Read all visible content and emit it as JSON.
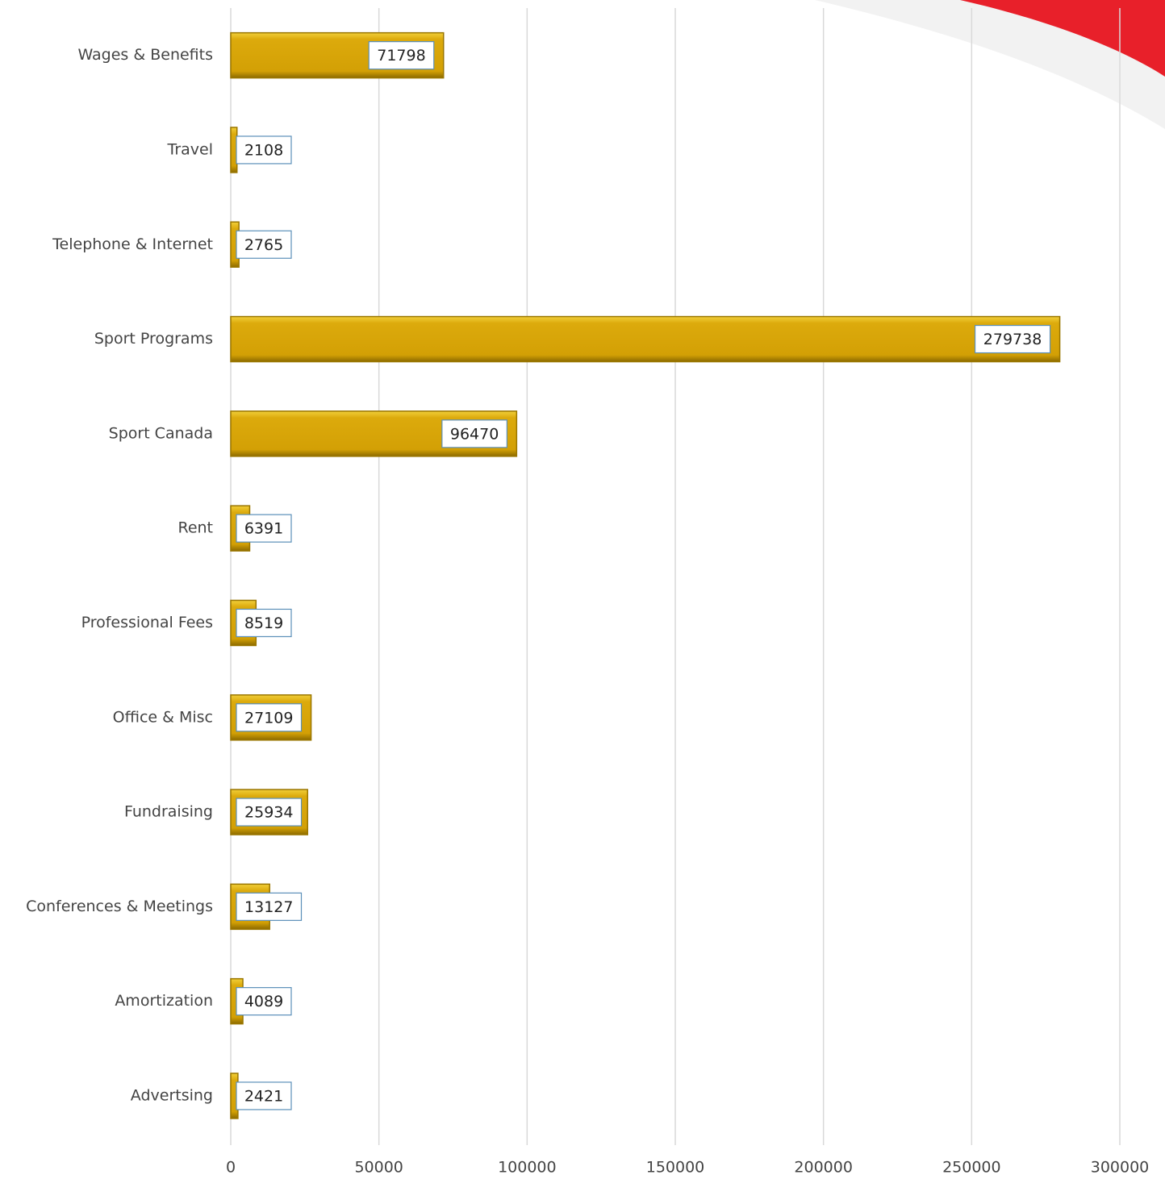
{
  "chart_data": {
    "type": "bar",
    "orientation": "horizontal",
    "categories": [
      "Wages & Benefits",
      "Travel",
      "Telephone & Internet",
      "Sport Programs",
      "Sport Canada",
      "Rent",
      "Professional Fees",
      "Office & Misc",
      "Fundraising",
      "Conferences & Meetings",
      "Amortization",
      "Advertsing"
    ],
    "values": [
      71798,
      2108,
      2765,
      279738,
      96470,
      6391,
      8519,
      27109,
      25934,
      13127,
      4089,
      2421
    ],
    "color": "#d9a90c",
    "xlim": [
      0,
      300000
    ],
    "xticks": [
      0,
      50000,
      100000,
      150000,
      200000,
      250000,
      300000
    ],
    "grid": true
  }
}
